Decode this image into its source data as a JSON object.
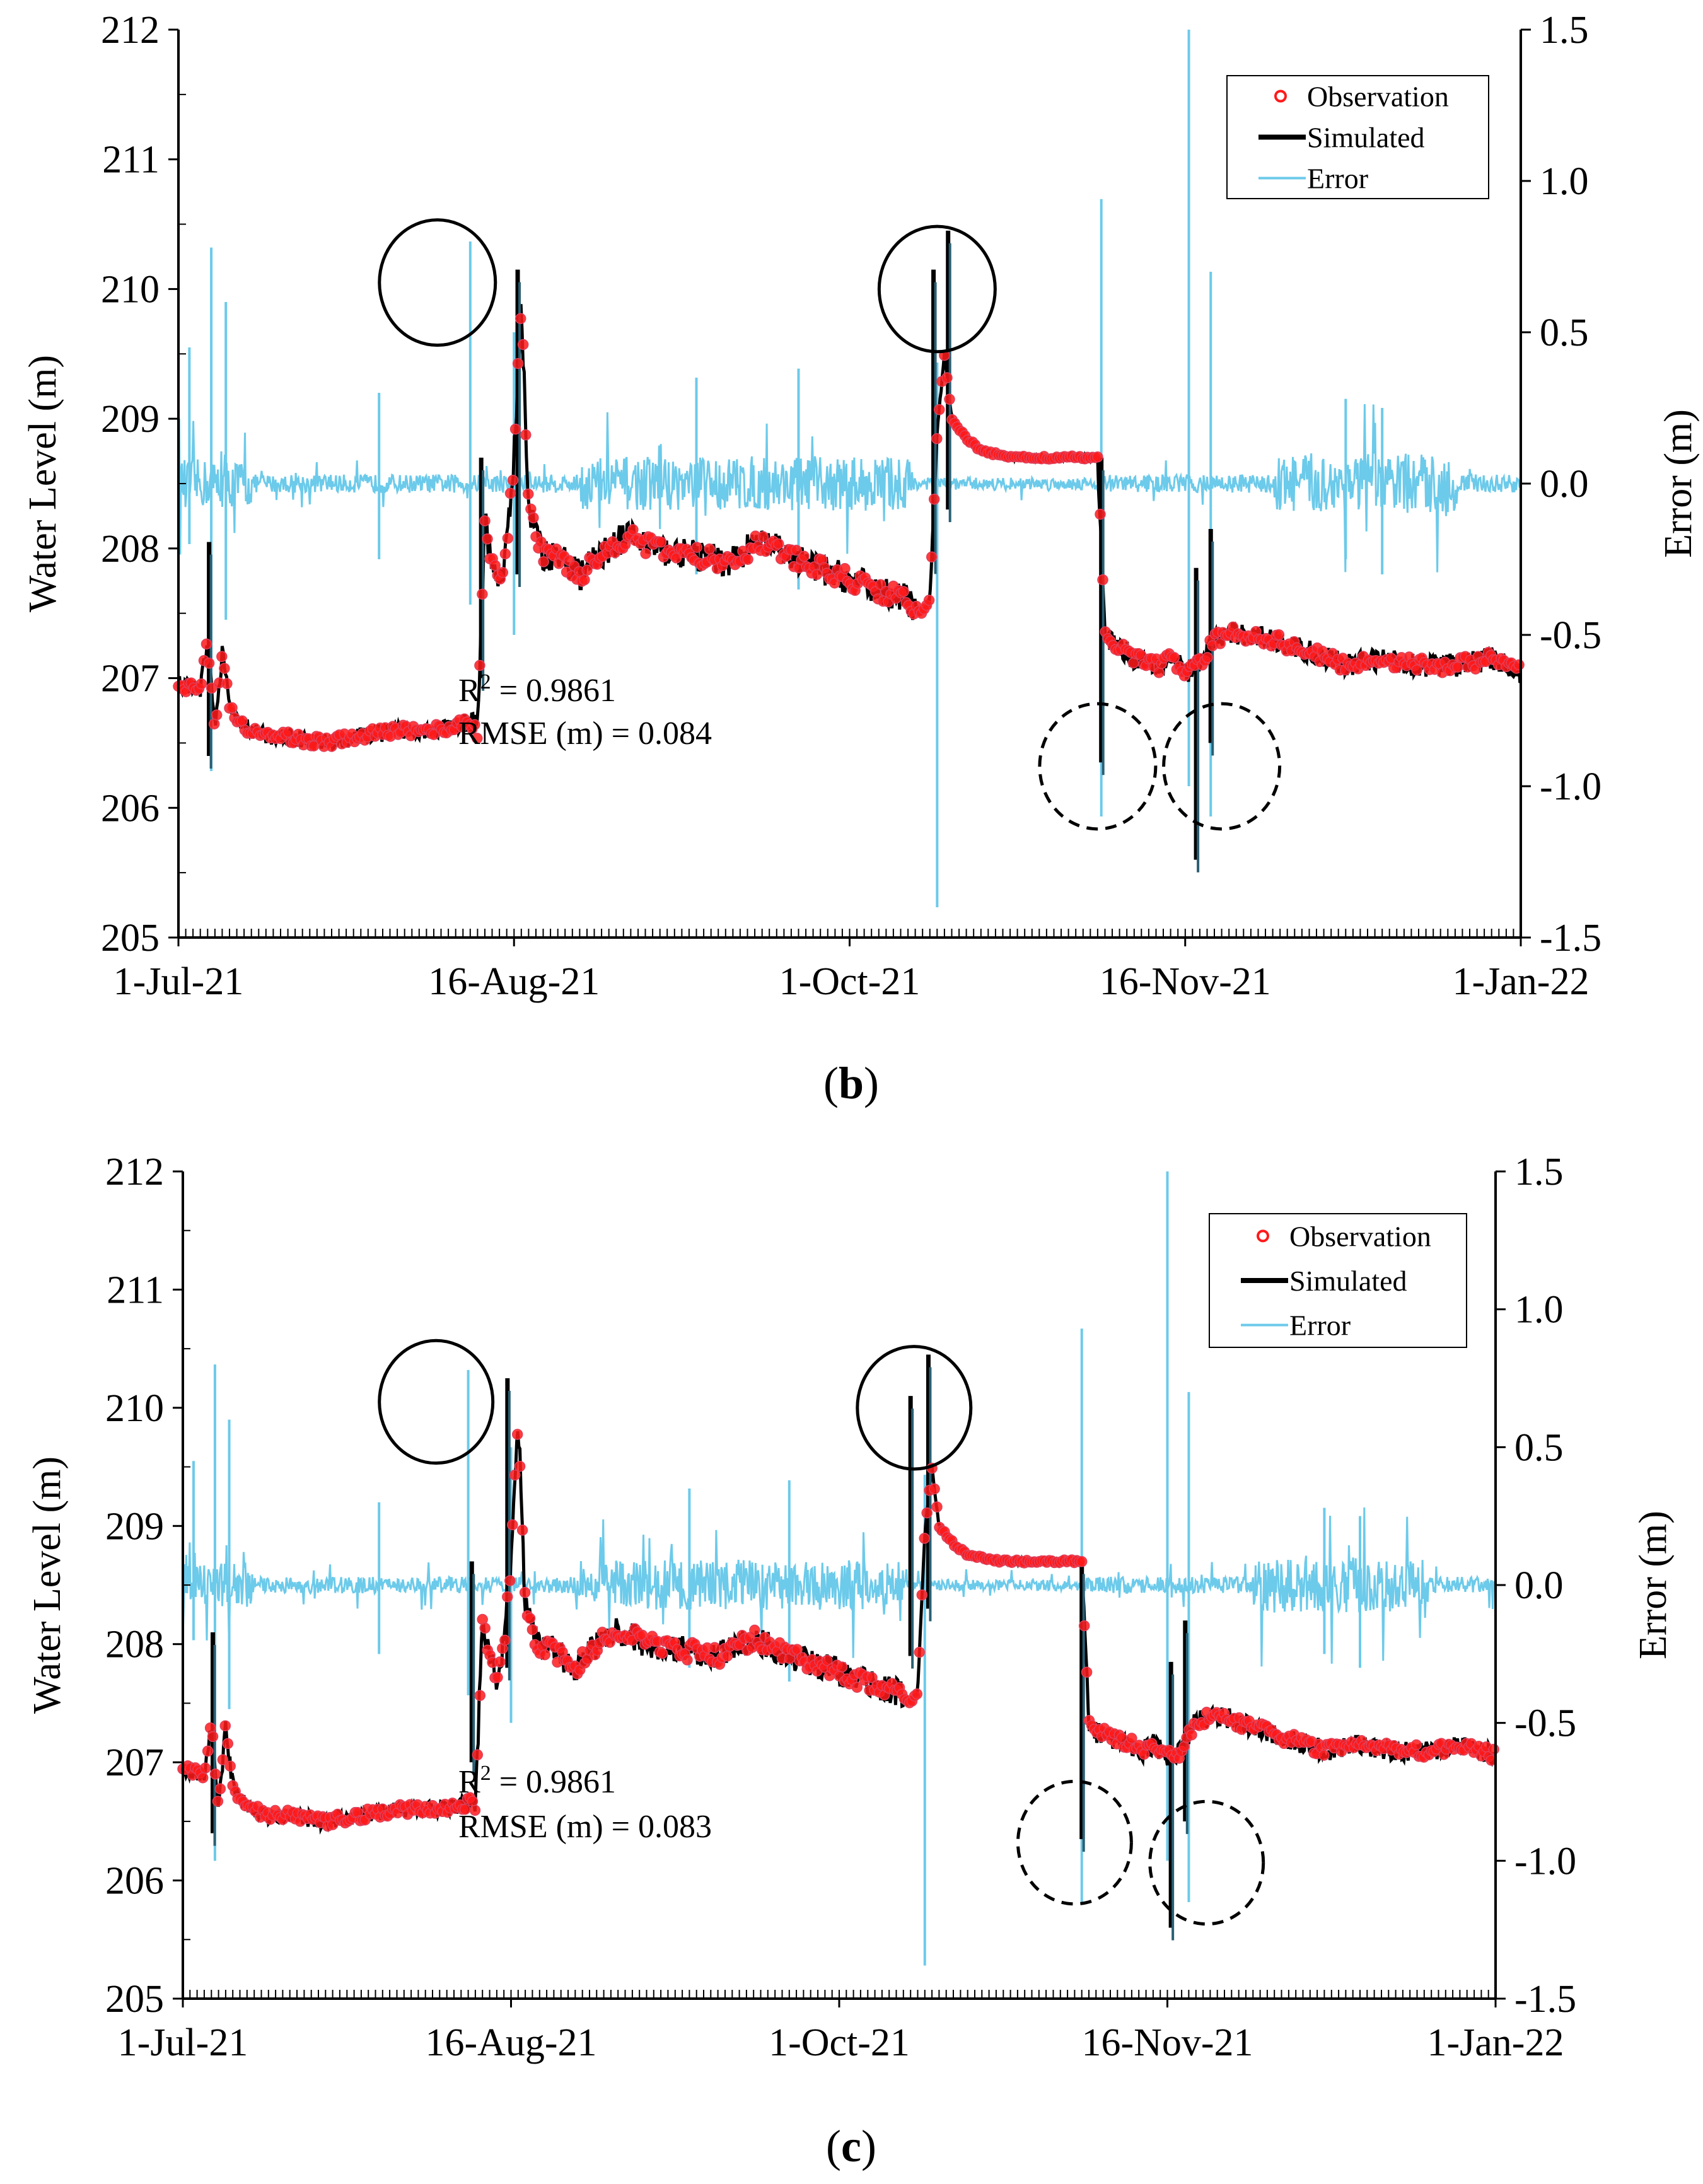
{
  "chart_data": [
    {
      "type": "line",
      "panel_label": "(b)",
      "panel_letter": "b",
      "xlabel": "",
      "ylabel": "Water Level (m)",
      "y2label": "Error (m)",
      "xticks": [
        "1-Jul-21",
        "16-Aug-21",
        "1-Oct-21",
        "16-Nov-21",
        "1-Jan-22"
      ],
      "x_range_days": [
        0,
        184
      ],
      "ylim": [
        205,
        212
      ],
      "yticks": [
        "205",
        "206",
        "207",
        "208",
        "209",
        "210",
        "211",
        "212"
      ],
      "y2lim": [
        -1.5,
        1.5
      ],
      "y2ticks": [
        "-1.5",
        "-1.0",
        "-0.5",
        "0.0",
        "0.5",
        "1.0",
        "1.5"
      ],
      "legend": [
        "Observation",
        "Simulated",
        "Error"
      ],
      "legend_position": "top-right",
      "stats": {
        "r2_label": "R",
        "r2_sup": "2",
        "r2_value": "=  0.9861",
        "rmse_text": "RMSE (m) = 0.084"
      },
      "colors": {
        "observation": "#ff1a1a",
        "simulated": "#000000",
        "error": "#6ccaea"
      },
      "series": [
        {
          "name": "Simulated",
          "days": [
            0,
            3,
            4,
            5,
            6,
            7,
            8,
            10,
            12,
            15,
            20,
            25,
            30,
            35,
            40,
            41,
            42,
            43,
            44,
            45,
            46,
            47,
            48,
            50,
            52,
            55,
            60,
            62,
            65,
            70,
            75,
            80,
            85,
            90,
            95,
            100,
            101,
            102,
            103,
            104,
            105,
            106,
            108,
            110,
            115,
            120,
            125,
            126,
            127,
            128,
            129,
            130,
            131,
            132,
            133,
            134,
            135,
            136,
            137,
            138,
            140,
            142,
            145,
            150,
            155,
            160,
            165,
            170,
            175,
            180,
            184
          ],
          "values": [
            206.95,
            206.9,
            207.3,
            206.6,
            207.2,
            206.8,
            206.65,
            206.6,
            206.55,
            206.55,
            206.5,
            206.55,
            206.6,
            206.6,
            206.65,
            206.6,
            208.2,
            207.9,
            207.7,
            208.0,
            208.7,
            209.9,
            208.3,
            207.95,
            207.95,
            207.8,
            208.05,
            208.1,
            208.0,
            207.95,
            207.9,
            208.05,
            207.9,
            207.8,
            207.7,
            207.6,
            207.55,
            207.5,
            207.6,
            208.9,
            209.5,
            209.0,
            208.85,
            208.75,
            208.7,
            208.7,
            208.7,
            208.7,
            207.3,
            207.3,
            207.25,
            207.2,
            207.15,
            207.15,
            207.15,
            207.1,
            207.1,
            207.15,
            207.1,
            207.05,
            207.1,
            207.3,
            207.35,
            207.3,
            207.2,
            207.1,
            207.15,
            207.1,
            207.1,
            207.15,
            207.05
          ]
        }
      ],
      "spikes": [
        {
          "day": 4.2,
          "low": 206.4,
          "high": 208.05
        },
        {
          "day": 41.5,
          "low": 207.0,
          "high": 208.7
        },
        {
          "day": 46.5,
          "low": 207.8,
          "high": 210.15
        },
        {
          "day": 103.5,
          "low": 207.9,
          "high": 210.15
        },
        {
          "day": 105.5,
          "low": 208.3,
          "high": 210.45
        },
        {
          "day": 126.5,
          "low": 206.35,
          "high": 208.7
        },
        {
          "day": 139.5,
          "low": 205.6,
          "high": 207.85
        },
        {
          "day": 141.5,
          "low": 206.5,
          "high": 208.15
        }
      ],
      "error_spikes": [
        {
          "day": 1.5,
          "low": -0.2,
          "high": 0.45
        },
        {
          "day": 4.5,
          "low": -0.95,
          "high": 0.78
        },
        {
          "day": 6.5,
          "low": -0.45,
          "high": 0.6
        },
        {
          "day": 27.5,
          "low": -0.25,
          "high": 0.3
        },
        {
          "day": 40.0,
          "low": -0.4,
          "high": 0.8
        },
        {
          "day": 46.0,
          "low": -0.5,
          "high": 0.5
        },
        {
          "day": 71.0,
          "low": -0.3,
          "high": 0.35
        },
        {
          "day": 85.0,
          "low": -0.35,
          "high": 0.38
        },
        {
          "day": 104.0,
          "low": -1.4,
          "high": 0.4
        },
        {
          "day": 126.5,
          "low": -1.1,
          "high": 0.94
        },
        {
          "day": 138.5,
          "low": -1.0,
          "high": 1.5
        },
        {
          "day": 141.5,
          "low": -1.1,
          "high": 0.7
        },
        {
          "day": 160.0,
          "low": -0.25,
          "high": 0.28
        },
        {
          "day": 165.0,
          "low": -0.3,
          "high": 0.25
        }
      ],
      "annotation_circles": [
        {
          "day": 35.5,
          "value": 210.05,
          "style": "solid"
        },
        {
          "day": 104.0,
          "value": 210.0,
          "style": "solid"
        },
        {
          "day": 126.0,
          "value": 206.32,
          "style": "dashed"
        },
        {
          "day": 143.0,
          "value": 206.32,
          "style": "dashed"
        }
      ]
    },
    {
      "type": "line",
      "panel_label": "(c)",
      "panel_letter": "c",
      "xlabel": "",
      "ylabel": "Water Level (m)",
      "y2label": "Error (m)",
      "xticks": [
        "1-Jul-21",
        "16-Aug-21",
        "1-Oct-21",
        "16-Nov-21",
        "1-Jan-22"
      ],
      "x_range_days": [
        0,
        184
      ],
      "ylim": [
        205,
        212
      ],
      "yticks": [
        "205",
        "206",
        "207",
        "208",
        "209",
        "210",
        "211",
        "212"
      ],
      "y2lim": [
        -1.5,
        1.5
      ],
      "y2ticks": [
        "-1.5",
        "-1.0",
        "-0.5",
        "0.0",
        "0.5",
        "1.0",
        "1.5"
      ],
      "legend": [
        "Observation",
        "Simulated",
        "Error"
      ],
      "legend_position": "top-right",
      "stats": {
        "r2_label": "R",
        "r2_sup": "2",
        "r2_value": "=  0.9861",
        "rmse_text": "RMSE (m) = 0.083"
      },
      "colors": {
        "observation": "#ff1a1a",
        "simulated": "#000000",
        "error": "#6ccaea"
      },
      "series": [
        {
          "name": "Simulated",
          "days": [
            0,
            3,
            4,
            5,
            6,
            7,
            8,
            10,
            12,
            15,
            20,
            25,
            30,
            35,
            40,
            41,
            42,
            43,
            44,
            45,
            46,
            47,
            48,
            50,
            52,
            55,
            60,
            62,
            65,
            70,
            75,
            80,
            85,
            90,
            95,
            100,
            101,
            102,
            103,
            104,
            105,
            106,
            108,
            110,
            115,
            120,
            125,
            126,
            127,
            128,
            129,
            130,
            131,
            132,
            133,
            134,
            135,
            136,
            137,
            138,
            140,
            142,
            145,
            150,
            155,
            160,
            165,
            170,
            175,
            180,
            184
          ],
          "values": [
            206.95,
            206.9,
            207.35,
            206.6,
            207.3,
            206.8,
            206.7,
            206.6,
            206.55,
            206.55,
            206.5,
            206.55,
            206.6,
            206.6,
            206.65,
            206.6,
            208.2,
            207.9,
            207.7,
            208.0,
            208.7,
            209.95,
            208.3,
            207.95,
            207.95,
            207.8,
            208.1,
            208.1,
            208.0,
            207.95,
            207.9,
            208.05,
            207.9,
            207.8,
            207.7,
            207.6,
            207.55,
            207.5,
            207.6,
            208.95,
            209.5,
            209.0,
            208.85,
            208.75,
            208.7,
            208.7,
            208.7,
            208.7,
            207.3,
            207.25,
            207.25,
            207.2,
            207.2,
            207.15,
            207.15,
            207.1,
            207.1,
            207.15,
            207.1,
            207.05,
            207.1,
            207.35,
            207.4,
            207.3,
            207.2,
            207.1,
            207.15,
            207.1,
            207.1,
            207.15,
            207.05
          ]
        }
      ],
      "spikes": [
        {
          "day": 4.2,
          "low": 206.4,
          "high": 208.1
        },
        {
          "day": 40.5,
          "low": 207.0,
          "high": 208.7
        },
        {
          "day": 45.5,
          "low": 207.8,
          "high": 210.25
        },
        {
          "day": 102.0,
          "low": 207.9,
          "high": 210.1
        },
        {
          "day": 104.5,
          "low": 208.3,
          "high": 210.45
        },
        {
          "day": 126.0,
          "low": 206.35,
          "high": 208.7
        },
        {
          "day": 138.5,
          "low": 205.6,
          "high": 207.85
        },
        {
          "day": 140.5,
          "low": 206.5,
          "high": 208.2
        }
      ],
      "error_spikes": [
        {
          "day": 1.5,
          "low": -0.2,
          "high": 0.45
        },
        {
          "day": 4.5,
          "low": -1.0,
          "high": 0.8
        },
        {
          "day": 6.5,
          "low": -0.45,
          "high": 0.6
        },
        {
          "day": 27.5,
          "low": -0.25,
          "high": 0.3
        },
        {
          "day": 40.0,
          "low": -0.4,
          "high": 0.78
        },
        {
          "day": 46.0,
          "low": -0.5,
          "high": 0.5
        },
        {
          "day": 71.0,
          "low": -0.3,
          "high": 0.35
        },
        {
          "day": 85.0,
          "low": -0.35,
          "high": 0.38
        },
        {
          "day": 104.0,
          "low": -1.38,
          "high": 0.4
        },
        {
          "day": 126.0,
          "low": -1.15,
          "high": 0.93
        },
        {
          "day": 138.0,
          "low": -1.0,
          "high": 1.5
        },
        {
          "day": 141.0,
          "low": -1.15,
          "high": 0.7
        },
        {
          "day": 160.0,
          "low": -0.25,
          "high": 0.28
        },
        {
          "day": 165.0,
          "low": -0.3,
          "high": 0.25
        }
      ],
      "annotation_circles": [
        {
          "day": 35.5,
          "value": 210.05,
          "style": "solid"
        },
        {
          "day": 102.5,
          "value": 210.0,
          "style": "solid"
        },
        {
          "day": 125.0,
          "value": 206.32,
          "style": "dashed"
        },
        {
          "day": 143.5,
          "value": 206.15,
          "style": "dashed"
        }
      ]
    }
  ]
}
